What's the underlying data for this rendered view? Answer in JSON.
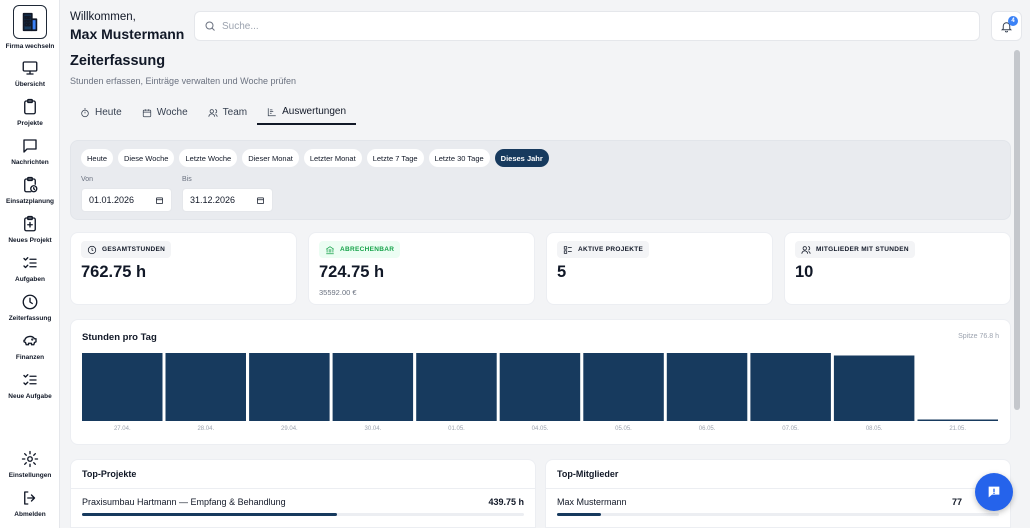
{
  "sidebar": {
    "items": [
      {
        "label": "Firma wechseln",
        "icon": "building-icon"
      },
      {
        "label": "Übersicht",
        "icon": "monitor-icon"
      },
      {
        "label": "Projekte",
        "icon": "clipboard-icon"
      },
      {
        "label": "Nachrichten",
        "icon": "message-icon"
      },
      {
        "label": "Einsatzplanung",
        "icon": "clipboard-clock-icon"
      },
      {
        "label": "Neues Projekt",
        "icon": "clipboard-plus-icon"
      },
      {
        "label": "Aufgaben",
        "icon": "checklist-icon"
      },
      {
        "label": "Zeiterfassung",
        "icon": "clock-icon"
      },
      {
        "label": "Finanzen",
        "icon": "piggy-bank-icon"
      },
      {
        "label": "Neue Aufgabe",
        "icon": "checklist-plus-icon"
      }
    ],
    "bottom": [
      {
        "label": "Einstellungen",
        "icon": "gear-icon"
      },
      {
        "label": "Abmelden",
        "icon": "logout-icon"
      }
    ]
  },
  "header": {
    "greeting": "Willkommen,",
    "user_name": "Max Mustermann",
    "search_placeholder": "Suche...",
    "notification_count": "4"
  },
  "page": {
    "title": "Zeiterfassung",
    "subtitle": "Stunden erfassen, Einträge verwalten und Woche prüfen"
  },
  "tabs": [
    {
      "label": "Heute",
      "icon": "stopwatch-icon"
    },
    {
      "label": "Woche",
      "icon": "calendar-icon"
    },
    {
      "label": "Team",
      "icon": "users-icon"
    },
    {
      "label": "Auswertungen",
      "icon": "bar-chart-icon",
      "active": true
    }
  ],
  "filters": {
    "ranges": [
      "Heute",
      "Diese Woche",
      "Letzte Woche",
      "Dieser Monat",
      "Letzter Monat",
      "Letzte 7 Tage",
      "Letzte 30 Tage",
      "Dieses Jahr"
    ],
    "active_range": "Dieses Jahr",
    "from_label": "Von",
    "from_value": "01.01.2026",
    "to_label": "Bis",
    "to_value": "31.12.2026"
  },
  "stats": [
    {
      "label": "GESAMTSTUNDEN",
      "value": "762.75 h",
      "sub": "",
      "icon": "clock-icon"
    },
    {
      "label": "ABRECHENBAR",
      "value": "724.75 h",
      "sub": "35592.00 €",
      "icon": "bank-icon",
      "color": "#16a34a"
    },
    {
      "label": "AKTIVE PROJEKTE",
      "value": "5",
      "sub": "",
      "icon": "list-icon"
    },
    {
      "label": "MITGLIEDER MIT STUNDEN",
      "value": "10",
      "sub": "",
      "icon": "users-icon"
    }
  ],
  "chart": {
    "title": "Stunden pro Tag",
    "peak_label": "Spitze 76.8 h"
  },
  "chart_data": {
    "type": "bar",
    "categories": [
      "27.04.",
      "28.04.",
      "29.04.",
      "30.04.",
      "01.05.",
      "04.05.",
      "05.05.",
      "06.05.",
      "07.05.",
      "08.05.",
      "21.05."
    ],
    "values": [
      76.8,
      76.8,
      76.8,
      76.8,
      76.8,
      76.8,
      76.8,
      76.8,
      76.8,
      74.0,
      1.5
    ],
    "ylim": [
      0,
      76.8
    ],
    "color": "#173a5e"
  },
  "top_projects": {
    "title": "Top-Projekte",
    "rows": [
      {
        "name": "Praxisumbau Hartmann — Empfang & Behandlung",
        "value": "439.75 h",
        "fraction": 0.576
      }
    ]
  },
  "top_members": {
    "title": "Top-Mitglieder",
    "rows": [
      {
        "name": "Max Mustermann",
        "value": "77",
        "fraction": 0.1
      }
    ]
  },
  "colors": {
    "accent": "#173a5e",
    "fab": "#2563eb",
    "badge": "#3b82f6",
    "billable": "#16a34a"
  }
}
